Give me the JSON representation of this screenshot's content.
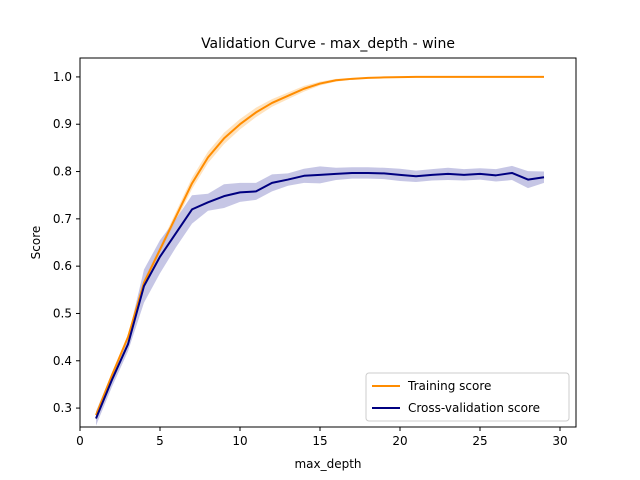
{
  "chart_data": {
    "type": "line",
    "title": "Validation Curve - max_depth - wine",
    "xlabel": "max_depth",
    "ylabel": "Score",
    "xlim": [
      0,
      31
    ],
    "ylim": [
      0.26,
      1.04
    ],
    "xticks": [
      0,
      5,
      10,
      15,
      20,
      25,
      30
    ],
    "yticks": [
      0.3,
      0.4,
      0.5,
      0.6,
      0.7,
      0.8,
      0.9,
      1.0
    ],
    "grid": false,
    "legend_position": "lower-right",
    "x": [
      1,
      2,
      3,
      4,
      5,
      6,
      7,
      8,
      9,
      10,
      11,
      12,
      13,
      14,
      15,
      16,
      17,
      18,
      19,
      20,
      21,
      22,
      23,
      24,
      25,
      26,
      27,
      28,
      29
    ],
    "series": [
      {
        "name": "Training score",
        "color": "#ff8c00",
        "band_color": "#ffd9a8",
        "values": [
          0.285,
          0.37,
          0.45,
          0.565,
          0.635,
          0.705,
          0.775,
          0.83,
          0.87,
          0.9,
          0.925,
          0.945,
          0.96,
          0.975,
          0.986,
          0.993,
          0.996,
          0.998,
          0.999,
          0.9995,
          1.0,
          1.0,
          1.0,
          1.0,
          1.0,
          1.0,
          1.0,
          1.0,
          1.0
        ],
        "band": [
          0.005,
          0.005,
          0.006,
          0.008,
          0.008,
          0.01,
          0.012,
          0.012,
          0.012,
          0.011,
          0.01,
          0.008,
          0.007,
          0.006,
          0.004,
          0.003,
          0.002,
          0.001,
          0.001,
          0.0005,
          0,
          0,
          0,
          0,
          0,
          0,
          0,
          0,
          0
        ]
      },
      {
        "name": "Cross-validation score",
        "color": "#000080",
        "band_color": "#b3b3dc",
        "values": [
          0.278,
          0.36,
          0.435,
          0.558,
          0.62,
          0.67,
          0.72,
          0.735,
          0.748,
          0.756,
          0.758,
          0.776,
          0.783,
          0.791,
          0.793,
          0.795,
          0.797,
          0.797,
          0.796,
          0.793,
          0.79,
          0.793,
          0.795,
          0.793,
          0.795,
          0.792,
          0.797,
          0.783,
          0.788
        ],
        "band": [
          0.015,
          0.015,
          0.015,
          0.035,
          0.035,
          0.03,
          0.03,
          0.018,
          0.025,
          0.02,
          0.018,
          0.018,
          0.013,
          0.015,
          0.018,
          0.013,
          0.012,
          0.012,
          0.012,
          0.013,
          0.012,
          0.012,
          0.013,
          0.012,
          0.012,
          0.013,
          0.015,
          0.018,
          0.012
        ]
      }
    ]
  }
}
